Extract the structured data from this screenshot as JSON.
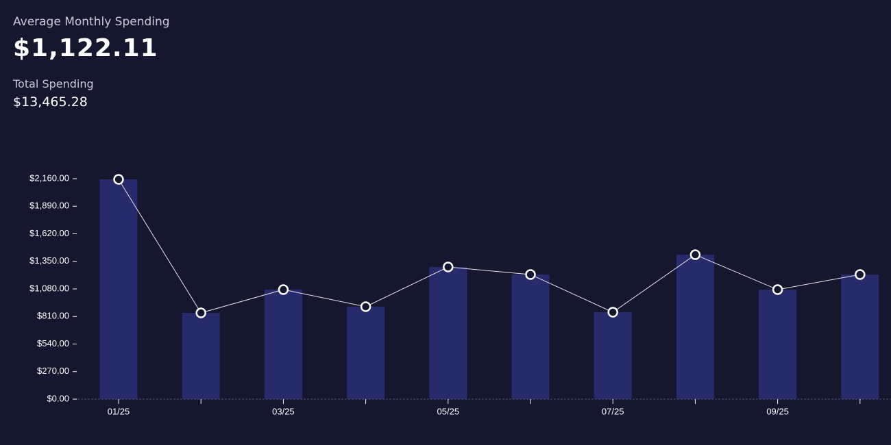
{
  "stats": {
    "average_label": "Average Monthly Spending",
    "average_value": "$1,122.11",
    "total_label": "Total Spending",
    "total_value": "$13,465.28"
  },
  "chart_data": {
    "type": "bar",
    "categories": [
      "01/25",
      null,
      "03/25",
      null,
      "05/25",
      null,
      "07/25",
      null,
      "09/25",
      null
    ],
    "values": [
      2153,
      845,
      1073,
      906,
      1295,
      1221,
      852,
      1415,
      1073,
      1221
    ],
    "color": "#272a6b",
    "line_color": "#e6e6ee",
    "ylim": [
      0,
      2160
    ],
    "yticks": [
      {
        "value": 0,
        "label": "$0.00"
      },
      {
        "value": 270,
        "label": "$270.00"
      },
      {
        "value": 540,
        "label": "$540.00"
      },
      {
        "value": 810,
        "label": "$810.00"
      },
      {
        "value": 1080,
        "label": "$1,080.00"
      },
      {
        "value": 1350,
        "label": "$1,350.00"
      },
      {
        "value": 1620,
        "label": "$1,620.00"
      },
      {
        "value": 1890,
        "label": "$1,890.00"
      },
      {
        "value": 2160,
        "label": "$2,160.00"
      }
    ]
  }
}
